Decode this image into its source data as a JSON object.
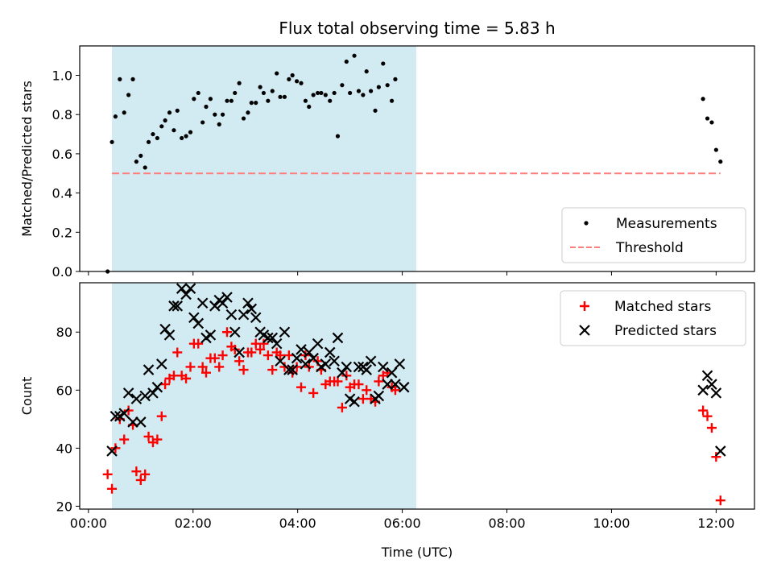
{
  "chart_data": [
    {
      "type": "scatter",
      "title": "Flux total observing time = 5.83 h",
      "xlabel": "",
      "ylabel": "Matched/Predicted stars",
      "xlim": [
        "23:50",
        "12:44"
      ],
      "ylim": [
        0,
        1.15
      ],
      "yticks": [
        0.0,
        0.2,
        0.4,
        0.6,
        0.8,
        1.0
      ],
      "ytick_labels": [
        "0.0",
        "0.2",
        "0.4",
        "0.6",
        "0.8",
        "1.0"
      ],
      "xticks": [
        "00:00",
        "02:00",
        "04:00",
        "06:00",
        "08:00",
        "10:00",
        "12:00"
      ],
      "shaded_span": {
        "x": [
          "00:27",
          "06:16"
        ],
        "color": "#add8e6"
      },
      "legend_position": "lower-right",
      "series": [
        {
          "name": "Measurements",
          "marker": "dot",
          "color": "#000000",
          "points": [
            [
              "00:22",
              0.0
            ],
            [
              "00:27",
              0.66
            ],
            [
              "00:31",
              0.79
            ],
            [
              "00:36",
              0.98
            ],
            [
              "00:41",
              0.81
            ],
            [
              "00:46",
              0.9
            ],
            [
              "00:51",
              0.98
            ],
            [
              "00:55",
              0.56
            ],
            [
              "01:00",
              0.59
            ],
            [
              "01:05",
              0.53
            ],
            [
              "01:09",
              0.66
            ],
            [
              "01:14",
              0.7
            ],
            [
              "01:19",
              0.68
            ],
            [
              "01:24",
              0.74
            ],
            [
              "01:28",
              0.77
            ],
            [
              "01:33",
              0.81
            ],
            [
              "01:38",
              0.72
            ],
            [
              "01:42",
              0.82
            ],
            [
              "01:47",
              0.68
            ],
            [
              "01:52",
              0.69
            ],
            [
              "01:57",
              0.71
            ],
            [
              "02:01",
              0.88
            ],
            [
              "02:06",
              0.91
            ],
            [
              "02:11",
              0.76
            ],
            [
              "02:15",
              0.84
            ],
            [
              "02:20",
              0.88
            ],
            [
              "02:25",
              0.8
            ],
            [
              "02:30",
              0.75
            ],
            [
              "02:34",
              0.8
            ],
            [
              "02:39",
              0.87
            ],
            [
              "02:44",
              0.87
            ],
            [
              "02:48",
              0.91
            ],
            [
              "02:53",
              0.96
            ],
            [
              "02:58",
              0.78
            ],
            [
              "03:03",
              0.81
            ],
            [
              "03:07",
              0.86
            ],
            [
              "03:12",
              0.86
            ],
            [
              "03:17",
              0.94
            ],
            [
              "03:21",
              0.91
            ],
            [
              "03:26",
              0.87
            ],
            [
              "03:31",
              0.92
            ],
            [
              "03:36",
              1.01
            ],
            [
              "03:40",
              0.89
            ],
            [
              "03:45",
              0.89
            ],
            [
              "03:50",
              0.98
            ],
            [
              "03:54",
              1.0
            ],
            [
              "03:59",
              0.97
            ],
            [
              "04:04",
              0.96
            ],
            [
              "04:09",
              0.87
            ],
            [
              "04:13",
              0.84
            ],
            [
              "04:18",
              0.9
            ],
            [
              "04:23",
              0.91
            ],
            [
              "04:27",
              0.91
            ],
            [
              "04:32",
              0.9
            ],
            [
              "04:37",
              0.87
            ],
            [
              "04:42",
              0.91
            ],
            [
              "04:46",
              0.69
            ],
            [
              "04:51",
              0.95
            ],
            [
              "04:56",
              1.07
            ],
            [
              "05:00",
              0.91
            ],
            [
              "05:05",
              1.1
            ],
            [
              "05:10",
              0.92
            ],
            [
              "05:15",
              0.9
            ],
            [
              "05:19",
              1.02
            ],
            [
              "05:24",
              0.92
            ],
            [
              "05:29",
              0.82
            ],
            [
              "05:33",
              0.94
            ],
            [
              "05:38",
              1.06
            ],
            [
              "05:43",
              0.95
            ],
            [
              "05:48",
              0.87
            ],
            [
              "05:52",
              0.98
            ],
            [
              "11:45",
              0.88
            ],
            [
              "11:50",
              0.78
            ],
            [
              "11:55",
              0.76
            ],
            [
              "12:00",
              0.62
            ],
            [
              "12:05",
              0.56
            ]
          ]
        },
        {
          "name": "Threshold",
          "marker": "dashed-line",
          "color": "#ff7f7f",
          "points": [
            [
              "00:27",
              0.5
            ],
            [
              "12:05",
              0.5
            ]
          ]
        }
      ]
    },
    {
      "type": "scatter",
      "title": "",
      "xlabel": "Time (UTC)",
      "ylabel": "Count",
      "xlim": [
        "23:50",
        "12:44"
      ],
      "ylim": [
        19,
        97
      ],
      "yticks": [
        20,
        40,
        60,
        80
      ],
      "ytick_labels": [
        "20",
        "40",
        "60",
        "80"
      ],
      "xticks": [
        "00:00",
        "02:00",
        "04:00",
        "06:00",
        "08:00",
        "10:00",
        "12:00"
      ],
      "xtick_labels": [
        "00:00",
        "02:00",
        "04:00",
        "06:00",
        "08:00",
        "10:00",
        "12:00"
      ],
      "shaded_span": {
        "x": [
          "00:27",
          "06:16"
        ],
        "color": "#add8e6"
      },
      "legend_position": "upper-right",
      "series": [
        {
          "name": "Matched stars",
          "marker": "plus",
          "color": "#ff0000",
          "points": [
            [
              "00:22",
              31
            ],
            [
              "00:27",
              26
            ],
            [
              "00:31",
              40
            ],
            [
              "00:36",
              50
            ],
            [
              "00:41",
              43
            ],
            [
              "00:46",
              53
            ],
            [
              "00:51",
              48
            ],
            [
              "00:55",
              32
            ],
            [
              "01:00",
              29
            ],
            [
              "01:05",
              31
            ],
            [
              "01:09",
              44
            ],
            [
              "01:14",
              42
            ],
            [
              "01:19",
              43
            ],
            [
              "01:24",
              51
            ],
            [
              "01:28",
              62
            ],
            [
              "01:33",
              64
            ],
            [
              "01:38",
              65
            ],
            [
              "01:42",
              73
            ],
            [
              "01:47",
              65
            ],
            [
              "01:52",
              64
            ],
            [
              "01:57",
              68
            ],
            [
              "02:01",
              76
            ],
            [
              "02:06",
              76
            ],
            [
              "02:11",
              68
            ],
            [
              "02:15",
              66
            ],
            [
              "02:20",
              71
            ],
            [
              "02:25",
              71
            ],
            [
              "02:30",
              68
            ],
            [
              "02:34",
              72
            ],
            [
              "02:39",
              80
            ],
            [
              "02:44",
              75
            ],
            [
              "02:48",
              74
            ],
            [
              "02:53",
              70
            ],
            [
              "02:58",
              67
            ],
            [
              "03:03",
              73
            ],
            [
              "03:07",
              73
            ],
            [
              "03:12",
              76
            ],
            [
              "03:17",
              74
            ],
            [
              "03:21",
              76
            ],
            [
              "03:26",
              72
            ],
            [
              "03:31",
              67
            ],
            [
              "03:36",
              73
            ],
            [
              "03:40",
              72
            ],
            [
              "03:45",
              68
            ],
            [
              "03:50",
              72
            ],
            [
              "03:54",
              66
            ],
            [
              "03:59",
              68
            ],
            [
              "04:04",
              61
            ],
            [
              "04:09",
              72
            ],
            [
              "04:13",
              68
            ],
            [
              "04:18",
              59
            ],
            [
              "04:23",
              70
            ],
            [
              "04:27",
              67
            ],
            [
              "04:32",
              62
            ],
            [
              "04:37",
              63
            ],
            [
              "04:42",
              63
            ],
            [
              "04:46",
              63
            ],
            [
              "04:51",
              54
            ],
            [
              "04:56",
              65
            ],
            [
              "05:00",
              61
            ],
            [
              "05:05",
              62
            ],
            [
              "05:10",
              62
            ],
            [
              "05:15",
              57
            ],
            [
              "05:19",
              60
            ],
            [
              "05:24",
              57
            ],
            [
              "05:29",
              56
            ],
            [
              "05:33",
              63
            ],
            [
              "05:38",
              65
            ],
            [
              "05:43",
              66
            ],
            [
              "05:48",
              61
            ],
            [
              "05:52",
              60
            ],
            [
              "11:45",
              53
            ],
            [
              "11:50",
              51
            ],
            [
              "11:55",
              47
            ],
            [
              "12:00",
              37
            ],
            [
              "12:05",
              22
            ]
          ]
        },
        {
          "name": "Predicted stars",
          "marker": "x",
          "color": "#000000",
          "points": [
            [
              "00:27",
              39
            ],
            [
              "00:31",
              51
            ],
            [
              "00:36",
              51
            ],
            [
              "00:41",
              52
            ],
            [
              "00:46",
              59
            ],
            [
              "00:51",
              49
            ],
            [
              "00:55",
              57
            ],
            [
              "01:00",
              49
            ],
            [
              "01:05",
              58
            ],
            [
              "01:09",
              67
            ],
            [
              "01:14",
              59
            ],
            [
              "01:19",
              61
            ],
            [
              "01:24",
              69
            ],
            [
              "01:28",
              81
            ],
            [
              "01:33",
              79
            ],
            [
              "01:38",
              89
            ],
            [
              "01:42",
              89
            ],
            [
              "01:47",
              95
            ],
            [
              "01:52",
              93
            ],
            [
              "01:57",
              95
            ],
            [
              "02:01",
              85
            ],
            [
              "02:06",
              83
            ],
            [
              "02:11",
              90
            ],
            [
              "02:15",
              78
            ],
            [
              "02:20",
              79
            ],
            [
              "02:25",
              89
            ],
            [
              "02:30",
              91
            ],
            [
              "02:34",
              90
            ],
            [
              "02:39",
              92
            ],
            [
              "02:44",
              86
            ],
            [
              "02:48",
              80
            ],
            [
              "02:53",
              73
            ],
            [
              "02:58",
              86
            ],
            [
              "03:03",
              90
            ],
            [
              "03:07",
              88
            ],
            [
              "03:12",
              85
            ],
            [
              "03:17",
              80
            ],
            [
              "03:21",
              79
            ],
            [
              "03:26",
              78
            ],
            [
              "03:31",
              78
            ],
            [
              "03:36",
              76
            ],
            [
              "03:40",
              70
            ],
            [
              "03:45",
              80
            ],
            [
              "03:50",
              67
            ],
            [
              "03:54",
              67
            ],
            [
              "03:59",
              71
            ],
            [
              "04:04",
              74
            ],
            [
              "04:09",
              69
            ],
            [
              "04:13",
              73
            ],
            [
              "04:18",
              71
            ],
            [
              "04:23",
              76
            ],
            [
              "04:27",
              68
            ],
            [
              "04:32",
              69
            ],
            [
              "04:37",
              73
            ],
            [
              "04:42",
              70
            ],
            [
              "04:46",
              78
            ],
            [
              "04:51",
              66
            ],
            [
              "04:56",
              68
            ],
            [
              "05:00",
              57
            ],
            [
              "05:05",
              56
            ],
            [
              "05:10",
              68
            ],
            [
              "05:15",
              68
            ],
            [
              "05:19",
              67
            ],
            [
              "05:24",
              70
            ],
            [
              "05:29",
              57
            ],
            [
              "05:33",
              58
            ],
            [
              "05:38",
              68
            ],
            [
              "05:43",
              62
            ],
            [
              "05:48",
              66
            ],
            [
              "05:52",
              62
            ],
            [
              "05:57",
              69
            ],
            [
              "06:02",
              61
            ],
            [
              "11:45",
              60
            ],
            [
              "11:50",
              65
            ],
            [
              "11:55",
              62
            ],
            [
              "12:00",
              59
            ],
            [
              "12:05",
              39
            ]
          ]
        }
      ]
    }
  ]
}
